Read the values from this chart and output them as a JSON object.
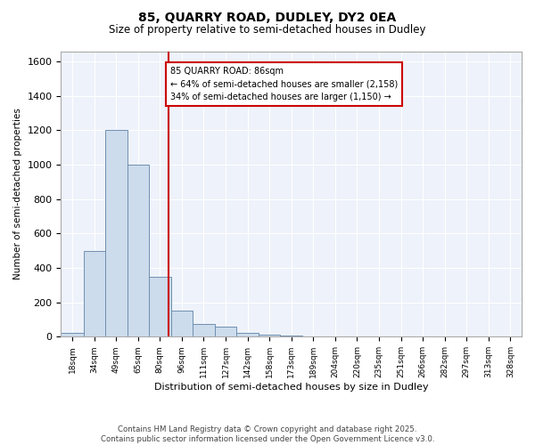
{
  "title": "85, QUARRY ROAD, DUDLEY, DY2 0EA",
  "subtitle": "Size of property relative to semi-detached houses in Dudley",
  "xlabel": "Distribution of semi-detached houses by size in Dudley",
  "ylabel": "Number of semi-detached properties",
  "footer_line1": "Contains HM Land Registry data © Crown copyright and database right 2025.",
  "footer_line2": "Contains public sector information licensed under the Open Government Licence v3.0.",
  "annotation_title": "85 QUARRY ROAD: 86sqm",
  "annotation_line1": "← 64% of semi-detached houses are smaller (2,158)",
  "annotation_line2": "34% of semi-detached houses are larger (1,150) →",
  "property_sqm": 86,
  "bar_color": "#ccdcec",
  "bar_edge_color": "#7090b0",
  "vline_color": "#cc0000",
  "annotation_box_edgecolor": "#cc0000",
  "background_color": "#eef2fa",
  "grid_color": "#ffffff",
  "categories": [
    "18sqm",
    "34sqm",
    "49sqm",
    "65sqm",
    "80sqm",
    "96sqm",
    "111sqm",
    "127sqm",
    "142sqm",
    "158sqm",
    "173sqm",
    "189sqm",
    "204sqm",
    "220sqm",
    "235sqm",
    "251sqm",
    "266sqm",
    "282sqm",
    "297sqm",
    "313sqm",
    "328sqm"
  ],
  "bin_edges": [
    10,
    26,
    41,
    57,
    72,
    88,
    103,
    119,
    134,
    150,
    165,
    181,
    196,
    212,
    227,
    243,
    258,
    274,
    289,
    305,
    320,
    336
  ],
  "values": [
    20,
    500,
    1200,
    1000,
    350,
    150,
    75,
    60,
    20,
    10,
    5,
    2,
    1,
    0,
    0,
    0,
    0,
    0,
    0,
    0,
    0
  ],
  "ylim": [
    0,
    1660
  ],
  "yticks": [
    0,
    200,
    400,
    600,
    800,
    1000,
    1200,
    1400,
    1600
  ]
}
